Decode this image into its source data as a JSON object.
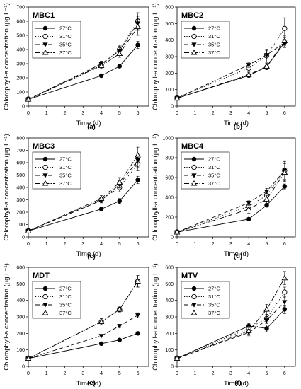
{
  "figure": {
    "shared_ylabel": "Chlorophyll-a concentration (μg L",
    "shared_ylabel_sup": "-1",
    "shared_ylabel_close": ")",
    "shared_xlabel": "Time (d)"
  },
  "chart_data": [
    {
      "type": "line",
      "title": "MBC1",
      "panel_label": "(a)",
      "xlabel": "Time (d)",
      "ylabel": "Chlorophyll-a concentration (μg L⁻¹)",
      "x": [
        0,
        4,
        5,
        6
      ],
      "xticks": [
        "0",
        "1",
        "2",
        "3",
        "4",
        "5",
        "6"
      ],
      "ylim": [
        0,
        700
      ],
      "yticks": [
        "0",
        "100",
        "200",
        "300",
        "400",
        "500",
        "600",
        "700"
      ],
      "legend": "top-left",
      "series": [
        {
          "name": "27°C",
          "values": [
            48,
            215,
            282,
            432
          ],
          "errors": [
            5,
            8,
            10,
            25
          ]
        },
        {
          "name": "31°C",
          "values": [
            50,
            290,
            400,
            600
          ],
          "errors": [
            5,
            25,
            30,
            60
          ]
        },
        {
          "name": "35°C",
          "values": [
            48,
            298,
            392,
            585
          ],
          "errors": [
            5,
            20,
            30,
            50
          ]
        },
        {
          "name": "37°C",
          "values": [
            47,
            285,
            370,
            560
          ],
          "errors": [
            5,
            20,
            25,
            60
          ]
        }
      ]
    },
    {
      "type": "line",
      "title": "MBC2",
      "panel_label": "(b)",
      "xlabel": "Time (d)",
      "ylabel": "Chlorophyll-a concentration (μg L⁻¹)",
      "x": [
        0,
        4,
        5,
        6
      ],
      "xticks": [
        "0",
        "1",
        "2",
        "3",
        "4",
        "5",
        "6"
      ],
      "ylim": [
        0,
        600
      ],
      "yticks": [
        "0",
        "100",
        "200",
        "300",
        "400",
        "500",
        "600"
      ],
      "legend": "top-left",
      "series": [
        {
          "name": "27°C",
          "values": [
            48,
            185,
            238,
            385
          ],
          "errors": [
            5,
            10,
            15,
            30
          ]
        },
        {
          "name": "31°C",
          "values": [
            50,
            230,
            305,
            470
          ],
          "errors": [
            5,
            20,
            40,
            65
          ]
        },
        {
          "name": "35°C",
          "values": [
            48,
            250,
            310,
            385
          ],
          "errors": [
            5,
            15,
            25,
            30
          ]
        },
        {
          "name": "37°C",
          "values": [
            47,
            190,
            240,
            395
          ],
          "errors": [
            5,
            15,
            20,
            30
          ]
        }
      ]
    },
    {
      "type": "line",
      "title": "MBC3",
      "panel_label": "(c)",
      "xlabel": "Time (d)",
      "ylabel": "Chlorophyll-a concentration (μg L⁻¹)",
      "x": [
        0,
        4,
        5,
        6
      ],
      "xticks": [
        "0",
        "1",
        "2",
        "3",
        "4",
        "5",
        "6"
      ],
      "ylim": [
        0,
        800
      ],
      "yticks": [
        "0",
        "100",
        "200",
        "300",
        "400",
        "500",
        "600",
        "700",
        "800"
      ],
      "legend": "top-left",
      "series": [
        {
          "name": "27°C",
          "values": [
            48,
            225,
            290,
            460
          ],
          "errors": [
            5,
            10,
            20,
            30
          ]
        },
        {
          "name": "31°C",
          "values": [
            50,
            300,
            400,
            590
          ],
          "errors": [
            5,
            20,
            35,
            55
          ]
        },
        {
          "name": "35°C",
          "values": [
            48,
            295,
            425,
            620
          ],
          "errors": [
            5,
            20,
            30,
            55
          ]
        },
        {
          "name": "37°C",
          "values": [
            47,
            310,
            440,
            660
          ],
          "errors": [
            5,
            25,
            40,
            65
          ]
        }
      ]
    },
    {
      "type": "line",
      "title": "MBC4",
      "panel_label": "(d)",
      "xlabel": "Time (d)",
      "ylabel": "Chlorophyll-a concentration (μg L⁻¹)",
      "x": [
        0,
        4,
        5,
        6
      ],
      "xticks": [
        "0",
        "1",
        "2",
        "3",
        "4",
        "5",
        "6"
      ],
      "ylim": [
        0,
        1000
      ],
      "yticks": [
        "0",
        "200",
        "400",
        "600",
        "800",
        "1000"
      ],
      "legend": "top-left",
      "series": [
        {
          "name": "27°C",
          "values": [
            48,
            180,
            320,
            510
          ],
          "errors": [
            5,
            10,
            15,
            25
          ]
        },
        {
          "name": "31°C",
          "values": [
            50,
            310,
            420,
            670
          ],
          "errors": [
            5,
            30,
            40,
            90
          ]
        },
        {
          "name": "35°C",
          "values": [
            48,
            345,
            460,
            670
          ],
          "errors": [
            5,
            20,
            30,
            100
          ]
        },
        {
          "name": "37°C",
          "values": [
            47,
            280,
            380,
            650
          ],
          "errors": [
            5,
            40,
            40,
            90
          ]
        }
      ]
    },
    {
      "type": "line",
      "title": "MDT",
      "panel_label": "(e)",
      "xlabel": "Time (d)",
      "ylabel": "Chlorophyll-a concentration (μg L⁻¹)",
      "x": [
        0,
        4,
        5,
        6
      ],
      "xticks": [
        "0",
        "1",
        "2",
        "3",
        "4",
        "5",
        "6"
      ],
      "ylim": [
        0,
        600
      ],
      "yticks": [
        "0",
        "100",
        "200",
        "300",
        "400",
        "500",
        "600"
      ],
      "legend": "top-left",
      "series": [
        {
          "name": "27°C",
          "values": [
            48,
            138,
            160,
            200
          ],
          "errors": [
            5,
            5,
            8,
            10
          ]
        },
        {
          "name": "31°C",
          "values": [
            50,
            270,
            345,
            515
          ],
          "errors": [
            5,
            20,
            15,
            35
          ]
        },
        {
          "name": "35°C",
          "values": [
            48,
            185,
            245,
            310
          ],
          "errors": [
            5,
            8,
            10,
            15
          ]
        },
        {
          "name": "37°C",
          "values": [
            47,
            270,
            345,
            515
          ],
          "errors": [
            5,
            20,
            15,
            35
          ]
        }
      ]
    },
    {
      "type": "line",
      "title": "MTV",
      "panel_label": "(f)",
      "xlabel": "Time (d)",
      "ylabel": "Chlorophyll-a concentration (μg L⁻¹)",
      "x": [
        0,
        4,
        5,
        6
      ],
      "xticks": [
        "0",
        "1",
        "2",
        "3",
        "4",
        "5",
        "6"
      ],
      "ylim": [
        0,
        600
      ],
      "yticks": [
        "0",
        "100",
        "200",
        "300",
        "400",
        "500",
        "600"
      ],
      "legend": "top-left",
      "series": [
        {
          "name": "27°C",
          "values": [
            48,
            245,
            230,
            345
          ],
          "errors": [
            5,
            15,
            20,
            25
          ]
        },
        {
          "name": "31°C",
          "values": [
            50,
            230,
            290,
            450
          ],
          "errors": [
            5,
            15,
            25,
            30
          ]
        },
        {
          "name": "35°C",
          "values": [
            48,
            205,
            280,
            390
          ],
          "errors": [
            5,
            20,
            20,
            30
          ]
        },
        {
          "name": "37°C",
          "values": [
            47,
            215,
            345,
            535
          ],
          "errors": [
            5,
            20,
            30,
            40
          ]
        }
      ]
    }
  ]
}
